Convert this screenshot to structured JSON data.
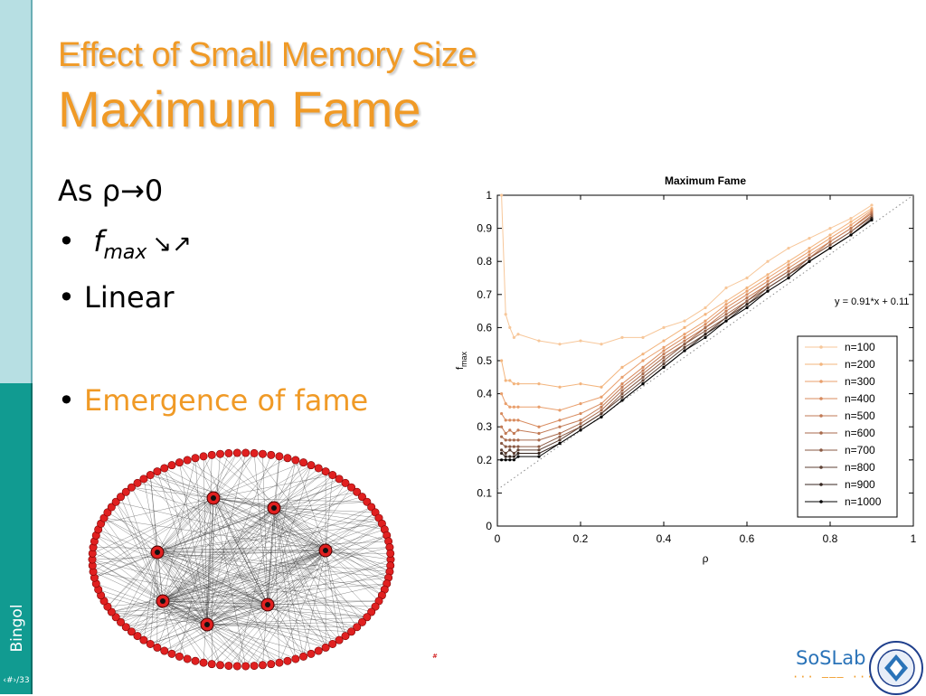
{
  "slide": {
    "title_line1": "Effect of Small Memory Size",
    "title_line2": "Maximum Fame",
    "bullets": {
      "as_rho": "As ρ→0",
      "fmax_bullet_marker": "•",
      "fmax_f": "f",
      "fmax_sub": "max",
      "fmax_arrows": "↘↗",
      "linear": "• Linear",
      "emergence_marker": "•",
      "emergence_text": "Emergence of fame"
    },
    "sidebar": {
      "author": "Bingol",
      "page": "‹#›/33"
    },
    "footer": {
      "logo_text": "SoSLab",
      "logo_dots": "··· ––– ···",
      "seal": "BOĞAZİÇİ ÜNİVERSİTESİ 1863"
    },
    "network_label": "#"
  },
  "colors": {
    "title_orange": "#f09a26",
    "sidebar_light": "#b7dfe3",
    "sidebar_dark": "#119b91",
    "node_red": "#e02020",
    "logo_blue": "#2a73b8"
  },
  "chart_data": {
    "type": "line",
    "title": "Maximum Fame",
    "xlabel": "ρ",
    "ylabel": "f",
    "ylabel_sub": "max",
    "xlim": [
      0,
      1
    ],
    "ylim": [
      0,
      1
    ],
    "xticks": [
      0,
      0.2,
      0.4,
      0.6,
      0.8,
      1
    ],
    "yticks": [
      0,
      0.1,
      0.2,
      0.3,
      0.4,
      0.5,
      0.6,
      0.7,
      0.8,
      0.9,
      1
    ],
    "grid": false,
    "legend_position": "bottom-right",
    "annotation": "y = 0.91*x + 0.11",
    "fit_line": {
      "slope": 0.91,
      "intercept": 0.11
    },
    "x": [
      0.01,
      0.02,
      0.03,
      0.04,
      0.05,
      0.1,
      0.15,
      0.2,
      0.25,
      0.3,
      0.35,
      0.4,
      0.45,
      0.5,
      0.55,
      0.6,
      0.65,
      0.7,
      0.75,
      0.8,
      0.85,
      0.9
    ],
    "series": [
      {
        "name": "n=100",
        "color": "#f7c79a",
        "values": [
          1.0,
          0.64,
          0.6,
          0.57,
          0.58,
          0.56,
          0.55,
          0.56,
          0.55,
          0.57,
          0.57,
          0.6,
          0.62,
          0.66,
          0.72,
          0.75,
          0.8,
          0.84,
          0.87,
          0.9,
          0.93,
          0.97
        ]
      },
      {
        "name": "n=200",
        "color": "#f3b57e",
        "values": [
          0.5,
          0.44,
          0.44,
          0.43,
          0.43,
          0.43,
          0.42,
          0.43,
          0.42,
          0.48,
          0.52,
          0.56,
          0.6,
          0.64,
          0.68,
          0.72,
          0.76,
          0.8,
          0.84,
          0.88,
          0.92,
          0.96
        ]
      },
      {
        "name": "n=300",
        "color": "#e99f6c",
        "values": [
          0.4,
          0.37,
          0.36,
          0.36,
          0.36,
          0.36,
          0.35,
          0.37,
          0.39,
          0.45,
          0.5,
          0.54,
          0.58,
          0.62,
          0.67,
          0.71,
          0.75,
          0.79,
          0.83,
          0.87,
          0.91,
          0.955
        ]
      },
      {
        "name": "n=400",
        "color": "#d88b5e",
        "values": [
          0.34,
          0.32,
          0.32,
          0.32,
          0.32,
          0.3,
          0.32,
          0.34,
          0.37,
          0.43,
          0.48,
          0.53,
          0.57,
          0.61,
          0.66,
          0.7,
          0.74,
          0.78,
          0.82,
          0.86,
          0.9,
          0.95
        ]
      },
      {
        "name": "n=500",
        "color": "#c27a55",
        "values": [
          0.3,
          0.28,
          0.29,
          0.28,
          0.29,
          0.28,
          0.3,
          0.32,
          0.36,
          0.42,
          0.47,
          0.52,
          0.56,
          0.6,
          0.65,
          0.69,
          0.73,
          0.77,
          0.81,
          0.86,
          0.9,
          0.945
        ]
      },
      {
        "name": "n=600",
        "color": "#a86a4c",
        "values": [
          0.27,
          0.26,
          0.26,
          0.26,
          0.26,
          0.26,
          0.28,
          0.31,
          0.35,
          0.41,
          0.46,
          0.51,
          0.55,
          0.6,
          0.64,
          0.68,
          0.73,
          0.77,
          0.81,
          0.85,
          0.89,
          0.94
        ]
      },
      {
        "name": "n=700",
        "color": "#8a5a44",
        "values": [
          0.25,
          0.24,
          0.24,
          0.24,
          0.24,
          0.24,
          0.27,
          0.3,
          0.34,
          0.4,
          0.45,
          0.5,
          0.55,
          0.59,
          0.63,
          0.68,
          0.72,
          0.76,
          0.81,
          0.85,
          0.89,
          0.935
        ]
      },
      {
        "name": "n=800",
        "color": "#5e4134",
        "values": [
          0.23,
          0.22,
          0.23,
          0.22,
          0.23,
          0.23,
          0.26,
          0.3,
          0.34,
          0.39,
          0.44,
          0.49,
          0.54,
          0.58,
          0.63,
          0.67,
          0.72,
          0.76,
          0.8,
          0.84,
          0.88,
          0.93
        ]
      },
      {
        "name": "n=900",
        "color": "#34251f",
        "values": [
          0.22,
          0.21,
          0.21,
          0.21,
          0.22,
          0.22,
          0.25,
          0.29,
          0.33,
          0.38,
          0.43,
          0.48,
          0.53,
          0.58,
          0.62,
          0.67,
          0.71,
          0.75,
          0.8,
          0.84,
          0.88,
          0.93
        ]
      },
      {
        "name": "n=1000",
        "color": "#000000",
        "values": [
          0.2,
          0.2,
          0.2,
          0.2,
          0.21,
          0.21,
          0.25,
          0.29,
          0.33,
          0.38,
          0.43,
          0.48,
          0.53,
          0.57,
          0.62,
          0.66,
          0.71,
          0.75,
          0.8,
          0.84,
          0.88,
          0.925
        ]
      }
    ]
  }
}
